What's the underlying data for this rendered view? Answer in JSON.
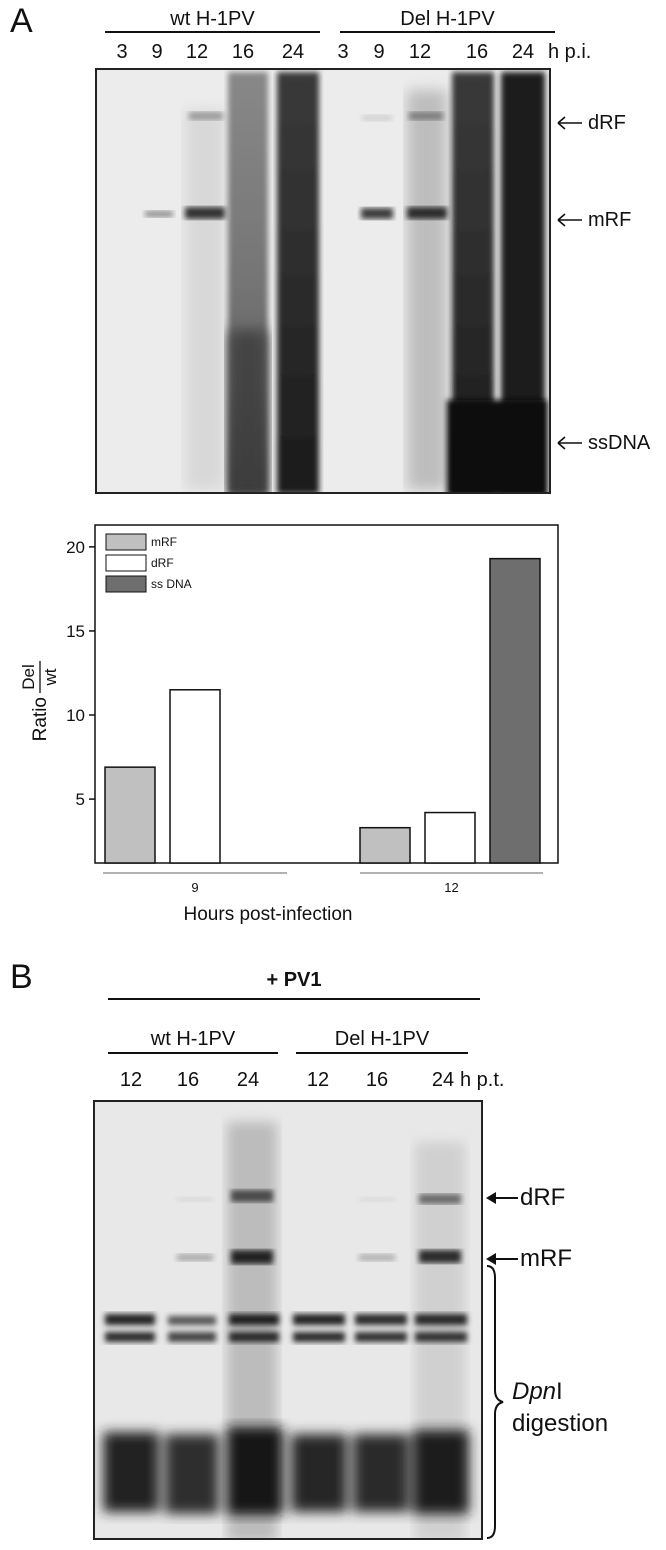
{
  "panelA": {
    "letter": "A",
    "groups": [
      "wt H-1PV",
      "Del H-1PV"
    ],
    "lanes": [
      "3",
      "9",
      "12",
      "16",
      "24",
      "3",
      "9",
      "12",
      "16",
      "24"
    ],
    "time_unit": "h p.i.",
    "bands": [
      "dRF",
      "mRF",
      "ssDNA"
    ]
  },
  "chart_data": {
    "type": "bar",
    "categories": [
      "9",
      "12"
    ],
    "series": [
      {
        "name": "mRF",
        "values": [
          6.9,
          3.3
        ],
        "color": "#c0c0c0"
      },
      {
        "name": "dRF",
        "values": [
          11.5,
          4.2
        ],
        "color": "#ffffff"
      },
      {
        "name": "ss DNA",
        "values": [
          null,
          19.3
        ],
        "color": "#6e6e6e"
      }
    ],
    "xlabel": "Hours post-infection",
    "ylabel_prefix": "Ratio",
    "ylabel_num": "Del",
    "ylabel_den": "wt",
    "yticks": [
      5,
      10,
      15,
      20
    ],
    "ylim": [
      1.2,
      21.3
    ],
    "legend_position": "top-left",
    "grid": false
  },
  "panelB": {
    "letter": "B",
    "treatment": "+ PV1",
    "groups": [
      "wt H-1PV",
      "Del H-1PV"
    ],
    "lanes": [
      "12",
      "16",
      "24",
      "12",
      "16",
      "24"
    ],
    "time_unit": "h p.t.",
    "bands": [
      "dRF",
      "mRF"
    ],
    "digestion_italic": "Dpn",
    "digestion_rest": "I",
    "digestion_line2": "digestion"
  }
}
